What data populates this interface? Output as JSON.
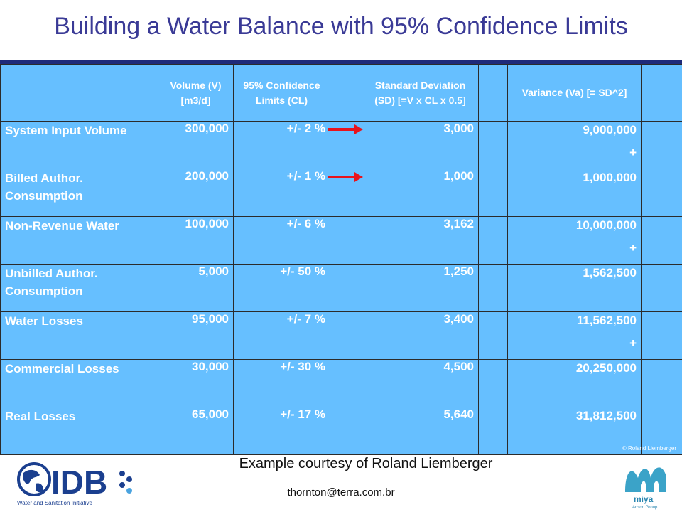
{
  "title": "Building a Water Balance with 95% Confidence Limits",
  "table": {
    "headers": {
      "label": "",
      "volume": "Volume (V) [m3/d]",
      "cl": "95% Confidence Limits (CL)",
      "sd": "Standard Deviation (SD) [=V x CL x 0.5]",
      "variance": "Variance (Va) [= SD^2]"
    },
    "rows": [
      {
        "label": "System Input Volume",
        "volume": "300,000",
        "cl": "+/- 2 %",
        "sd": "3,000",
        "variance": "9,000,000",
        "plus": "+"
      },
      {
        "label": "Billed Author. Consumption",
        "volume": "200,000",
        "cl": "+/- 1 %",
        "sd": "1,000",
        "variance": "1,000,000",
        "plus": ""
      },
      {
        "label": "Non-Revenue Water",
        "volume": "100,000",
        "cl": "+/- 6 %",
        "sd": "3,162",
        "variance": "10,000,000",
        "plus": "+"
      },
      {
        "label": "Unbilled Author. Consumption",
        "volume": "5,000",
        "cl": "+/- 50 %",
        "sd": "1,250",
        "variance": "1,562,500",
        "plus": ""
      },
      {
        "label": "Water Losses",
        "volume": "95,000",
        "cl": "+/- 7 %",
        "sd": "3,400",
        "variance": "11,562,500",
        "plus": "+"
      },
      {
        "label": "Commercial Losses",
        "volume": "30,000",
        "cl": "+/- 30 %",
        "sd": "4,500",
        "variance": "20,250,000",
        "plus": ""
      },
      {
        "label": "Real Losses",
        "volume": "65,000",
        "cl": "+/- 17 %",
        "sd": "5,640",
        "variance": "31,812,500",
        "plus": ""
      }
    ]
  },
  "copyright": "© Roland Liemberger",
  "courtesy": "Example courtesy of Roland Liemberger",
  "email": "thornton@terra.com.br",
  "logos": {
    "idb": {
      "text": "IDB",
      "subtext": "Water and Sanitation Initiative"
    },
    "miya": {
      "text": "miya",
      "subtext": "Arison Group"
    }
  },
  "colors": {
    "title": "#3a3a96",
    "table_bg": "#66bfff",
    "red_value": "#cc0000",
    "arrow": "#e8131b",
    "idb_blue": "#1b3f8f"
  }
}
